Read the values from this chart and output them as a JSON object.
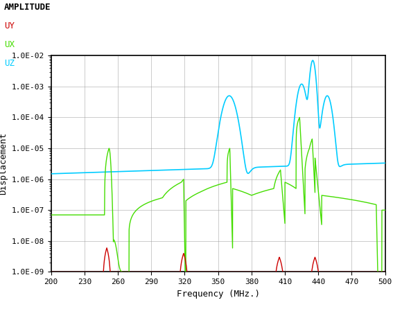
{
  "title": "AMPLITUDE",
  "legend_labels": [
    "UY",
    "UX",
    "UZ"
  ],
  "legend_colors": [
    "#cc0000",
    "#44dd00",
    "#00ccff"
  ],
  "xlabel": "Frequency (MHz.)",
  "ylabel": "Displacement",
  "xlim": [
    200,
    500
  ],
  "ylim_log": [
    -9,
    -2
  ],
  "plot_bg": "#ffffff",
  "grid_color": "#999999"
}
